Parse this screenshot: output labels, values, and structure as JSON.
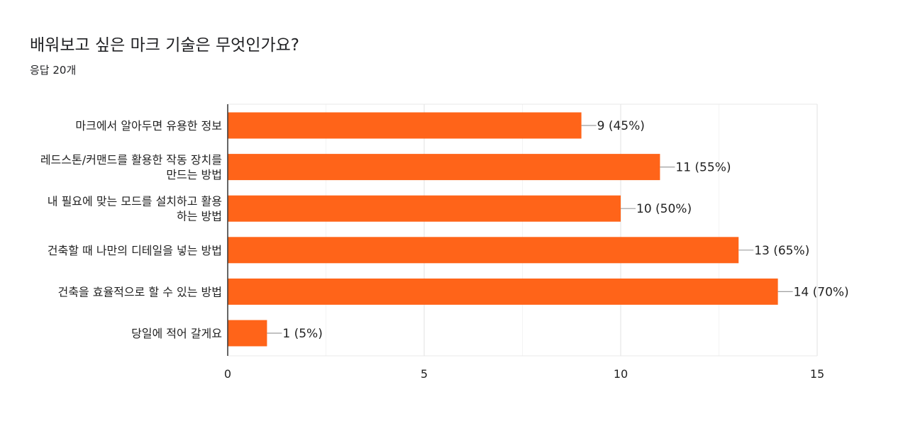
{
  "header": {
    "question": "배워보고 싶은 마크 기술은 무엇인가요?",
    "responses": "응답 20개"
  },
  "chart_data": {
    "type": "bar",
    "orientation": "horizontal",
    "categories": [
      "마크에서 알아두면 유용한 정보",
      "레드스톤/커맨드를 활용한 작동 장치를 만드는 방법",
      "내 필요에 맞는 모드를 설치하고 활용하는 방법",
      "건축할 때 나만의 디테일을 넣는 방법",
      "건축을 효율적으로 할 수 있는 방법",
      "당일에 적어 갈게요"
    ],
    "category_lines": [
      [
        "마크에서 알아두면 유용한 정보"
      ],
      [
        "레드스톤/커맨드를 활용한 작동 장치를",
        "만드는 방법"
      ],
      [
        "내 필요에 맞는 모드를 설치하고 활용",
        "하는 방법"
      ],
      [
        "건축할 때 나만의 디테일을 넣는 방법"
      ],
      [
        "건축을 효율적으로 할 수 있는 방법"
      ],
      [
        "당일에 적어 갈게요"
      ]
    ],
    "values": [
      9,
      11,
      10,
      13,
      14,
      1
    ],
    "value_labels": [
      "9 (45%)",
      "11 (55%)",
      "10 (50%)",
      "13 (65%)",
      "14 (70%)",
      "1 (5%)"
    ],
    "xlim": [
      0,
      15
    ],
    "xticks": [
      0,
      5,
      10,
      15
    ],
    "minor_grid": [
      2.5,
      7.5,
      12.5
    ],
    "grid": true,
    "bar_color": "#ff6419"
  }
}
